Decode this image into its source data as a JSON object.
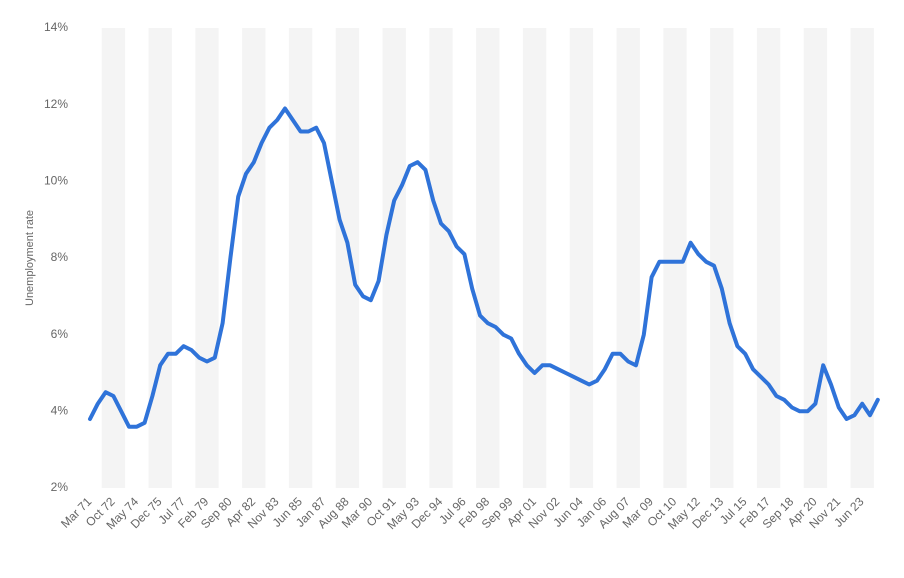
{
  "chart_data": {
    "type": "line",
    "y_label": "Unemployment rate",
    "categories": [
      "Mar 71",
      null,
      null,
      "Oct 72",
      null,
      null,
      "May 74",
      null,
      null,
      "Dec 75",
      null,
      null,
      "Jul 77",
      null,
      null,
      "Feb 79",
      null,
      null,
      "Sep 80",
      null,
      null,
      "Apr 82",
      null,
      null,
      "Nov 83",
      null,
      null,
      "Jun 85",
      null,
      null,
      "Jan 87",
      null,
      null,
      "Aug 88",
      null,
      null,
      "Mar 90",
      null,
      null,
      "Oct 91",
      null,
      null,
      "May 93",
      null,
      null,
      "Dec 94",
      null,
      null,
      "Jul 96",
      null,
      null,
      "Feb 98",
      null,
      null,
      "Sep 99",
      null,
      null,
      "Apr 01",
      null,
      null,
      "Nov 02",
      null,
      null,
      "Jun 04",
      null,
      null,
      "Jan 06",
      null,
      null,
      "Aug 07",
      null,
      null,
      "Mar 09",
      null,
      null,
      "Oct 10",
      null,
      null,
      "May 12",
      null,
      null,
      "Dec 13",
      null,
      null,
      "Jul 15",
      null,
      null,
      "Feb 17",
      null,
      null,
      "Sep 18",
      null,
      null,
      "Apr 20",
      null,
      null,
      "Nov 21",
      null,
      null,
      "Jun 23",
      null,
      null
    ],
    "values": [
      3.8,
      4.2,
      4.5,
      4.4,
      4.0,
      3.6,
      3.6,
      3.7,
      4.4,
      5.2,
      5.5,
      5.5,
      5.7,
      5.6,
      5.4,
      5.3,
      5.4,
      6.3,
      8.0,
      9.6,
      10.2,
      10.5,
      11.0,
      11.4,
      11.6,
      11.9,
      11.6,
      11.3,
      11.3,
      11.4,
      11.0,
      10.0,
      9.0,
      8.4,
      7.3,
      7.0,
      6.9,
      7.4,
      8.6,
      9.5,
      9.9,
      10.4,
      10.5,
      10.3,
      9.5,
      8.9,
      8.7,
      8.3,
      8.1,
      7.2,
      6.5,
      6.3,
      6.2,
      6.0,
      5.9,
      5.5,
      5.2,
      5.0,
      5.2,
      5.2,
      5.1,
      5.0,
      4.9,
      4.8,
      4.7,
      4.8,
      5.1,
      5.5,
      5.5,
      5.3,
      5.2,
      6.0,
      7.5,
      7.9,
      7.9,
      7.9,
      7.9,
      8.4,
      8.1,
      7.9,
      7.8,
      7.2,
      6.3,
      5.7,
      5.5,
      5.1,
      4.9,
      4.7,
      4.4,
      4.3,
      4.1,
      4.0,
      4.0,
      4.2,
      5.2,
      4.7,
      4.1,
      3.8,
      3.9,
      4.2,
      3.9,
      4.3
    ],
    "color": "#2f73d9",
    "ylim": [
      2,
      14
    ],
    "yticks": [
      {
        "value": 2,
        "label": "2%"
      },
      {
        "value": 4,
        "label": "4%"
      },
      {
        "value": 6,
        "label": "6%"
      },
      {
        "value": 8,
        "label": "8%"
      },
      {
        "value": 10,
        "label": "10%"
      },
      {
        "value": 12,
        "label": "12%"
      },
      {
        "value": 14,
        "label": "14%"
      }
    ],
    "grid": true
  }
}
